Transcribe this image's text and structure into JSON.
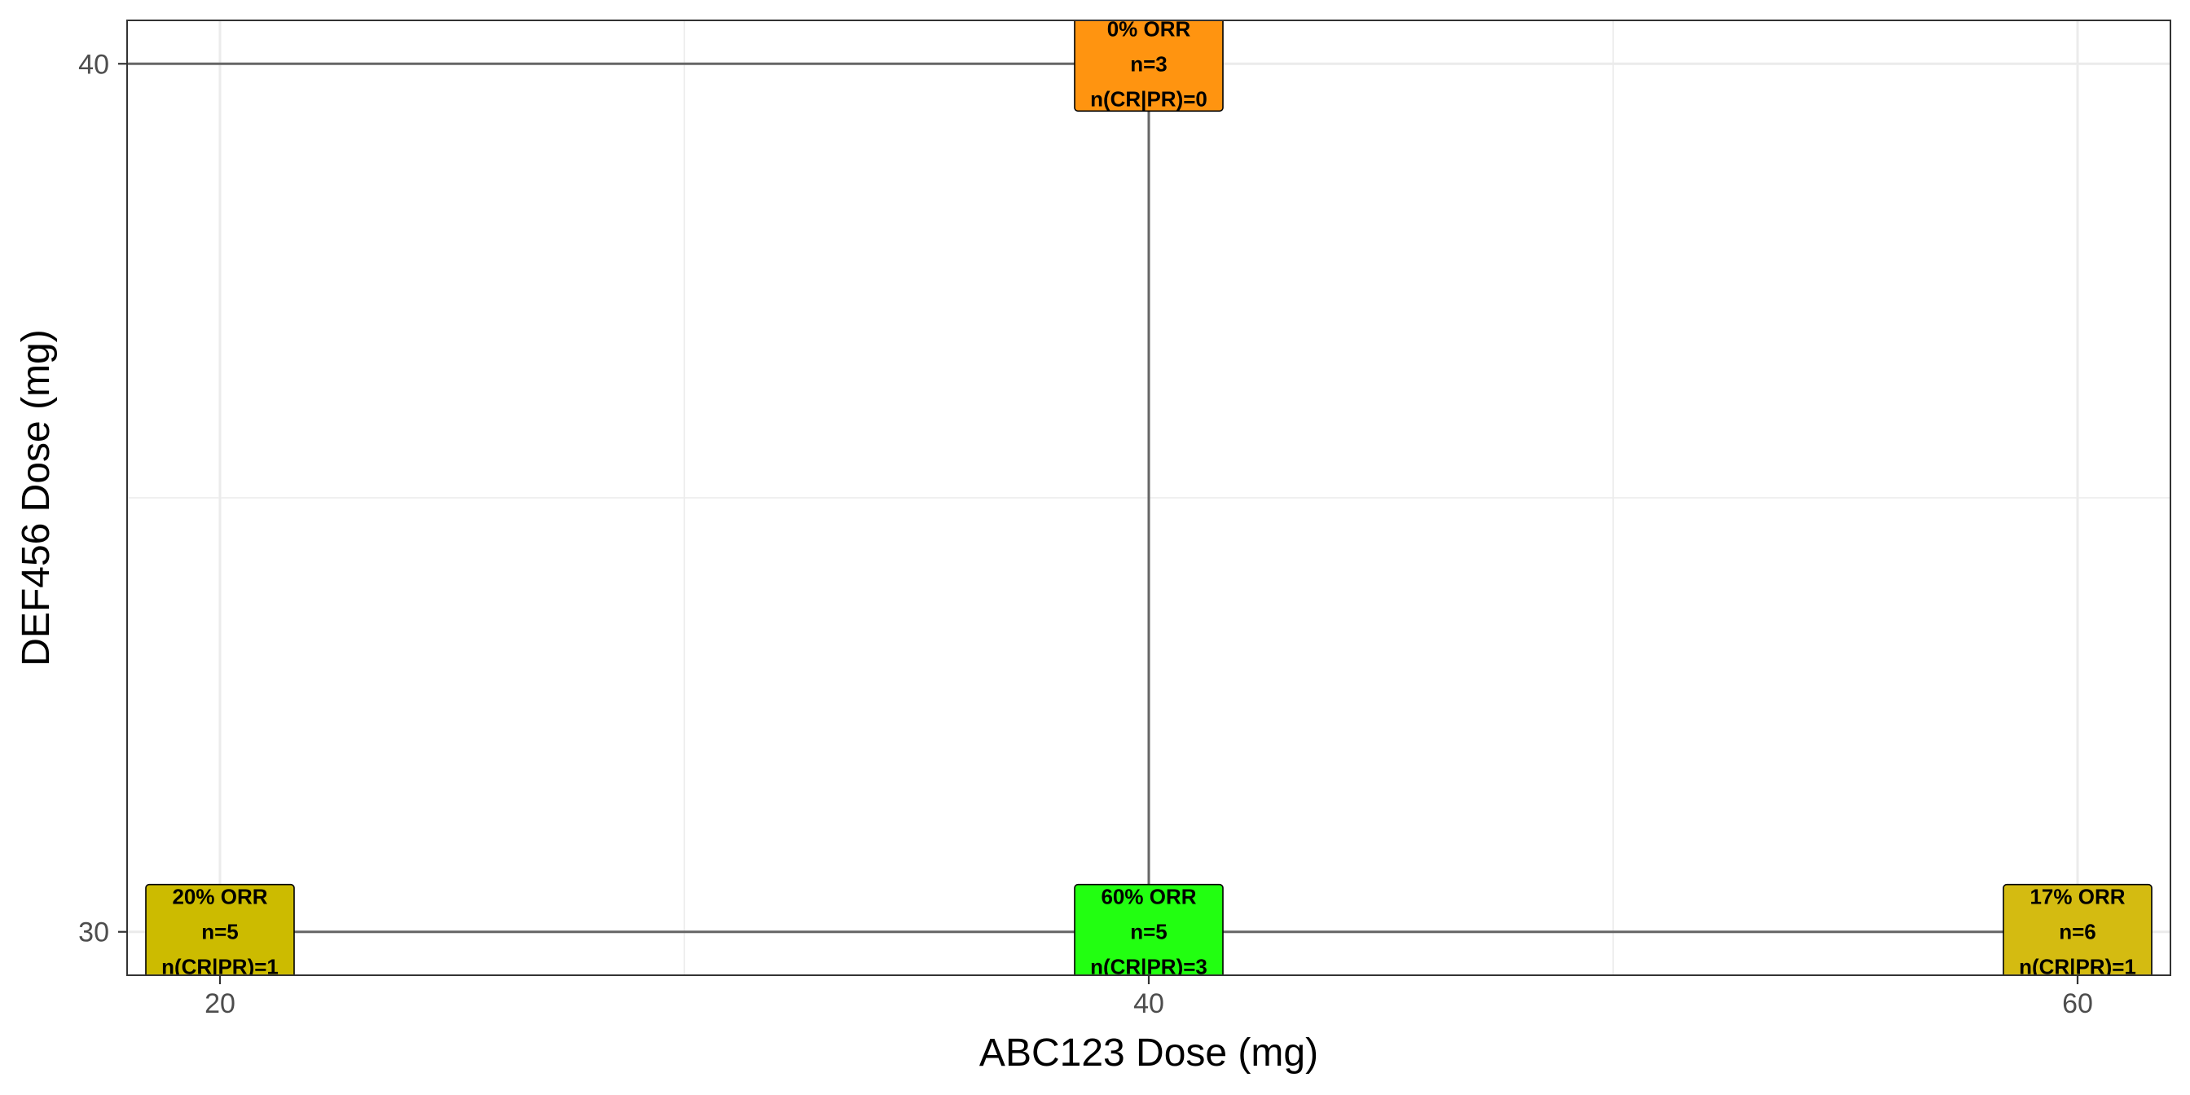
{
  "chart_data": {
    "type": "scatter",
    "title": "",
    "xlabel": "ABC123 Dose (mg)",
    "ylabel": "DEF456 Dose (mg)",
    "xlim": [
      18,
      62
    ],
    "ylim": [
      29.5,
      40.5
    ],
    "x_ticks": [
      20,
      40,
      60
    ],
    "y_ticks": [
      30,
      40
    ],
    "grid": true,
    "legend": "none",
    "connections": [
      {
        "from": [
          20,
          30
        ],
        "to": [
          40,
          30
        ]
      },
      {
        "from": [
          40,
          30
        ],
        "to": [
          60,
          30
        ]
      },
      {
        "from": [
          40,
          30
        ],
        "to": [
          40,
          40
        ]
      },
      {
        "from": [
          18,
          40
        ],
        "to": [
          40,
          40
        ]
      }
    ],
    "points": [
      {
        "x": 20,
        "y": 30,
        "orr": "20% ORR",
        "n": "n=5",
        "responders": "n(CR|PR)=1",
        "color": "#ccbb00"
      },
      {
        "x": 40,
        "y": 30,
        "orr": "60% ORR",
        "n": "n=5",
        "responders": "n(CR|PR)=3",
        "color": "#22ff11"
      },
      {
        "x": 60,
        "y": 30,
        "orr": "17% ORR",
        "n": "n=6",
        "responders": "n(CR|PR)=1",
        "color": "#d4bb11"
      },
      {
        "x": 40,
        "y": 40,
        "orr": "0% ORR",
        "n": "n=3",
        "responders": "n(CR|PR)=0",
        "color": "#ff9410"
      }
    ]
  }
}
